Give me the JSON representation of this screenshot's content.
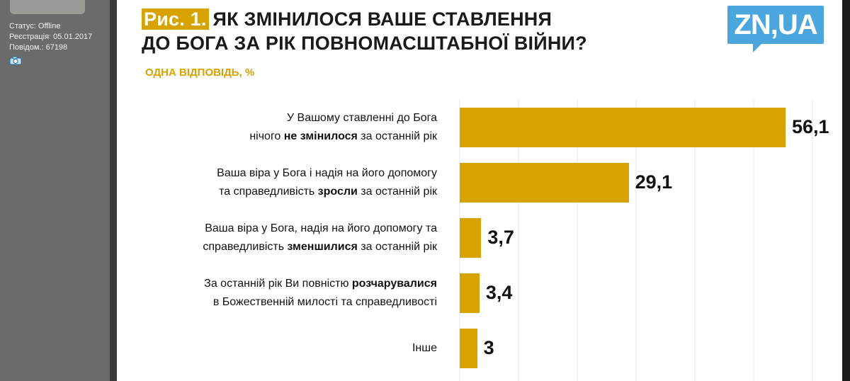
{
  "forum": {
    "status": "Статус: Offline",
    "registration": "Реєстрація: 05.01.2017",
    "posts": "Повідом.: 67198"
  },
  "colors": {
    "bar": "#d7a300",
    "logo": "#4aa6dc",
    "grid": "#e4e4e4"
  },
  "logo": {
    "text": "ZN,UA"
  },
  "chart_data": {
    "type": "bar",
    "orientation": "horizontal",
    "title_prefix": "Рис. 1.",
    "title_lines": [
      "ЯК ЗМІНИЛОСЯ ВАШЕ СТАВЛЕННЯ",
      "ДО БОГА ЗА РІК ПОВНОМАСШТАБНОЇ ВІЙНИ?"
    ],
    "subtitle": "ОДНА ВІДПОВІДЬ, %",
    "grid": true,
    "categories": [
      {
        "lines": [
          [
            {
              "t": "У Вашому ставленні до Бога",
              "b": false
            }
          ],
          [
            {
              "t": "нічого ",
              "b": false
            },
            {
              "t": "не змінилося",
              "b": true
            },
            {
              "t": " за останній рік",
              "b": false
            }
          ]
        ]
      },
      {
        "lines": [
          [
            {
              "t": "Ваша віра у Бога і надія на його допомогу",
              "b": false
            }
          ],
          [
            {
              "t": "та справедливість ",
              "b": false
            },
            {
              "t": "зросли",
              "b": true
            },
            {
              "t": " за останній рік",
              "b": false
            }
          ]
        ]
      },
      {
        "lines": [
          [
            {
              "t": "Ваша віра у Бога, надія на його допомогу та",
              "b": false
            }
          ],
          [
            {
              "t": "справедливість ",
              "b": false
            },
            {
              "t": "зменшилися",
              "b": true
            },
            {
              "t": " за останній рік",
              "b": false
            }
          ]
        ]
      },
      {
        "lines": [
          [
            {
              "t": "За останній рік Ви повністю ",
              "b": false
            },
            {
              "t": "розчарувалися",
              "b": true
            }
          ],
          [
            {
              "t": "в Божественній милості та справедливості",
              "b": false
            }
          ]
        ]
      },
      {
        "lines": [
          [
            {
              "t": "Інше",
              "b": false
            }
          ]
        ]
      }
    ],
    "values": [
      56.1,
      29.1,
      3.7,
      3.4,
      3
    ],
    "value_labels": [
      "56,1",
      "29,1",
      "3,7",
      "3,4",
      "3"
    ]
  }
}
